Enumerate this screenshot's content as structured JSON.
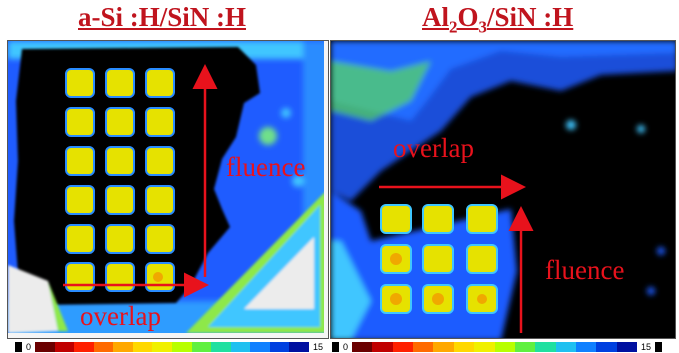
{
  "titles": {
    "left": {
      "pre": "a-Si :H/SiN :H",
      "sub1": "",
      "mid": "",
      "sub2": "",
      "post": ""
    },
    "right": {
      "pre": "Al",
      "sub1": "2",
      "mid": "O",
      "sub2": "3",
      "post": "/SiN :H"
    }
  },
  "left_panel": {
    "annotations": {
      "fluence": "fluence",
      "overlap": "overlap"
    }
  },
  "right_panel": {
    "annotations": {
      "fluence": "fluence",
      "overlap": "overlap"
    }
  },
  "color_scale": {
    "min": "0",
    "max": "15",
    "colors": [
      "#6b0000",
      "#c00000",
      "#ff2000",
      "#ff6a00",
      "#ffa800",
      "#ffd800",
      "#f0f000",
      "#b8ff00",
      "#60f040",
      "#20e0a0",
      "#20c0f0",
      "#1080ff",
      "#0040e0",
      "#0010a0"
    ]
  },
  "colors": {
    "annotation": "#e8121c",
    "title": "#c0141e",
    "background_dark": "#000000",
    "blue": "#1f5cff",
    "cyan": "#3fc6ff",
    "yellow": "#e6e200",
    "orange": "#f0a800",
    "green": "#8ee84a"
  }
}
